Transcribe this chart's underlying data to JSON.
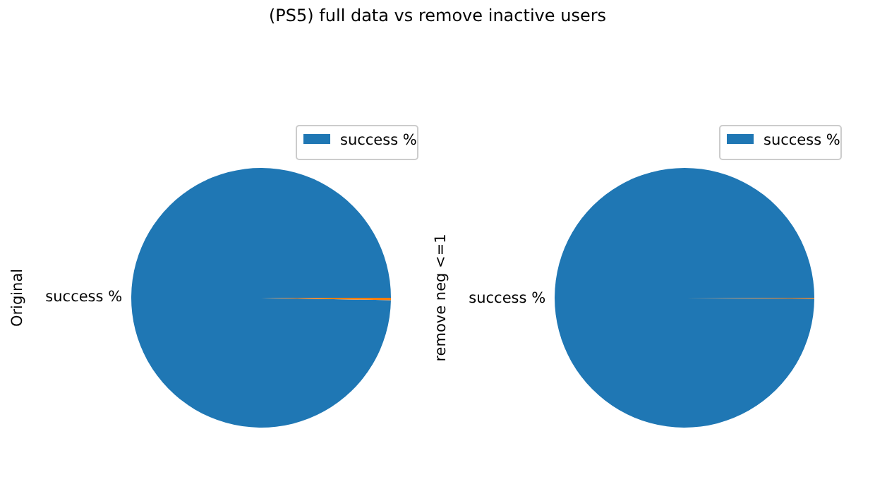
{
  "chart_data": [
    {
      "type": "pie",
      "title": "(PS5) full data vs remove inactive users",
      "ylabel": "Original",
      "categories": [
        "success %",
        null
      ],
      "values": [
        99.7,
        0.3
      ],
      "colors": [
        "#1f77b4",
        "#ff7f0e"
      ],
      "legend": "top right"
    },
    {
      "type": "pie",
      "ylabel": "remove neg <=1",
      "categories": [
        "success %",
        null
      ],
      "values": [
        99.9,
        0.1
      ],
      "colors": [
        "#1f77b4",
        "#ff7f0e"
      ],
      "legend": "top right"
    }
  ]
}
